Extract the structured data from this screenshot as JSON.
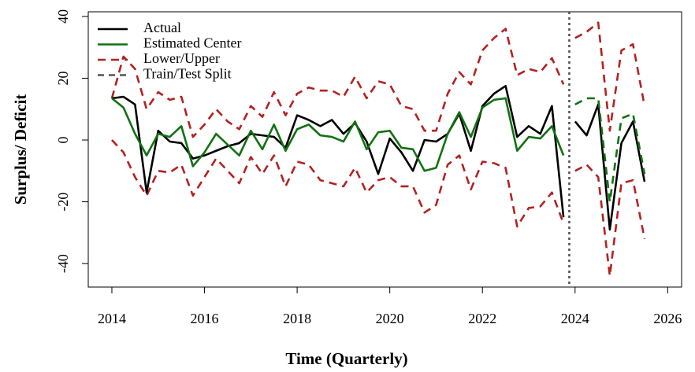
{
  "chart_data": {
    "type": "line",
    "xlabel": "Time (Quarterly)",
    "ylabel": "Surplus/ Deficit",
    "x": [
      2014.0,
      2014.25,
      2014.5,
      2014.75,
      2015.0,
      2015.25,
      2015.5,
      2015.75,
      2016.0,
      2016.25,
      2016.5,
      2016.75,
      2017.0,
      2017.25,
      2017.5,
      2017.75,
      2018.0,
      2018.25,
      2018.5,
      2018.75,
      2019.0,
      2019.25,
      2019.5,
      2019.75,
      2020.0,
      2020.25,
      2020.5,
      2020.75,
      2021.0,
      2021.25,
      2021.5,
      2021.75,
      2022.0,
      2022.25,
      2022.5,
      2022.75,
      2023.0,
      2023.25,
      2023.5,
      2023.75,
      2023.875,
      2024.0,
      2024.25,
      2024.5,
      2024.75,
      2025.0,
      2025.25,
      2025.5
    ],
    "series": [
      {
        "name": "Actual",
        "color": "#000000",
        "values": [
          13.5,
          14,
          11.5,
          -17,
          3,
          -0.5,
          -1,
          -6,
          -5,
          -3.5,
          -2,
          -1,
          2,
          1.5,
          1,
          -2.5,
          8,
          6.5,
          4.5,
          6.5,
          2,
          5.5,
          -0.5,
          -11,
          0.5,
          -4,
          -10,
          0,
          -0.5,
          2,
          8.5,
          -3.5,
          11,
          15,
          17.5,
          1,
          4.5,
          2,
          11,
          -25,
          null,
          6,
          1.5,
          11.5,
          -29,
          -1,
          6,
          -13.5
        ]
      },
      {
        "name": "Estimated Center",
        "color": "#127112",
        "dash": "test",
        "values": [
          13.5,
          10.5,
          2,
          -5,
          2,
          1,
          4.5,
          -8.5,
          -4,
          2,
          -1.5,
          -5,
          3,
          -3,
          5,
          -3.5,
          3.5,
          5,
          1.5,
          1,
          -0.5,
          6,
          -3,
          2.5,
          3,
          -2.5,
          -3,
          -10,
          -9,
          2,
          9,
          1,
          10.5,
          13,
          13.5,
          -3.5,
          1,
          0.5,
          4.5,
          -5,
          null,
          11.5,
          13.5,
          13.5,
          -20,
          7,
          8.5,
          -11
        ]
      }
    ],
    "band": {
      "name": "Lower/Upper",
      "color": "#b22222",
      "lower": [
        0,
        -4,
        -12,
        -18,
        -10,
        -10.5,
        -8,
        -18,
        -12,
        -6,
        -10,
        -14,
        -5.5,
        -11,
        -5,
        -15,
        -7,
        -8,
        -13,
        -14,
        -15,
        -9,
        -17,
        -13,
        -12,
        -15,
        -15,
        -23.5,
        -21,
        -8,
        -5,
        -16,
        -7,
        -7.5,
        -9,
        -28,
        -22,
        -21.5,
        -17,
        -27,
        null,
        -10,
        -8,
        -12,
        -44,
        -14,
        -13,
        -32
      ],
      "upper": [
        13.5,
        27,
        23,
        10,
        15.5,
        13,
        14,
        1,
        5,
        10,
        6,
        3.5,
        11,
        7.5,
        15.5,
        8,
        15,
        17,
        16,
        16,
        14,
        20.5,
        13.5,
        19,
        18,
        11,
        10,
        3,
        3,
        15,
        22,
        18,
        29,
        33,
        36,
        21,
        23,
        22,
        26.5,
        18,
        null,
        33,
        35,
        38,
        3,
        29,
        31,
        11
      ]
    },
    "split": {
      "name": "Train/Test Split",
      "x": 2023.875,
      "color": "#555555"
    },
    "xlim": [
      2013.49,
      2026.3
    ],
    "xticks": [
      2014,
      2016,
      2018,
      2020,
      2022,
      2024,
      2026
    ],
    "ylim": [
      -47.6,
      41.5
    ],
    "yticks": [
      -40,
      -20,
      0,
      20,
      40
    ],
    "legend": "top-left"
  }
}
